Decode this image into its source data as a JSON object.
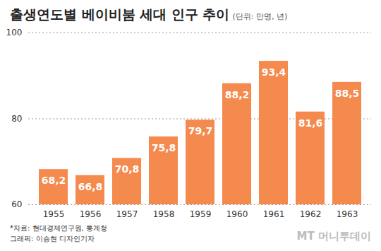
{
  "chart_data": {
    "type": "bar",
    "title": "출생연도별 베이비붐 세대 인구 추이",
    "subtitle": "(단위: 만명, 년)",
    "categories": [
      "1955",
      "1956",
      "1957",
      "1958",
      "1959",
      "1960",
      "1961",
      "1962",
      "1963"
    ],
    "values": [
      68.2,
      66.8,
      70.8,
      75.8,
      79.7,
      88.2,
      93.4,
      81.6,
      88.5
    ],
    "value_labels": [
      "68,2",
      "66,8",
      "70,8",
      "75,8",
      "79,7",
      "88,2",
      "93,4",
      "81,6",
      "88,5"
    ],
    "color": "#f58a4e",
    "ylim": [
      60,
      100
    ],
    "yticks": [
      60,
      80,
      100
    ],
    "grid": true,
    "data_labels": true,
    "source": "*자료: 현대경제연구원, 통계청",
    "credit": "그래픽: 이승현 디자인기자",
    "watermark": "MT 머니투데이"
  }
}
